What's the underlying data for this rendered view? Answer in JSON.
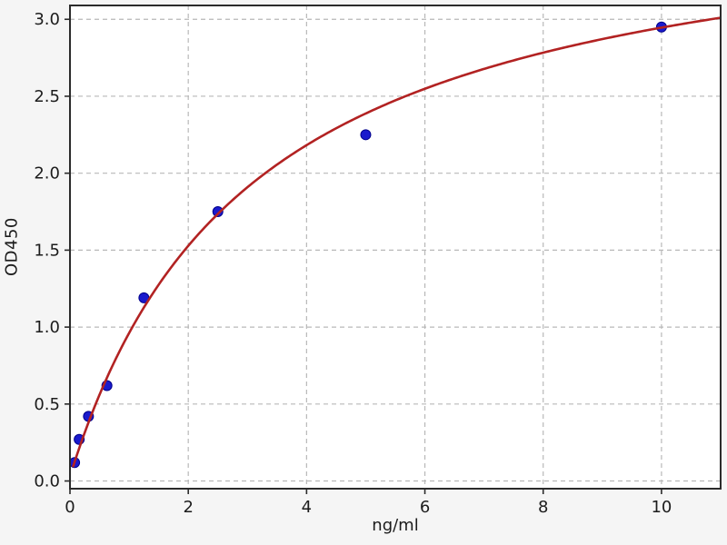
{
  "figure": {
    "background_color": "#f5f5f5",
    "plot_background_color": "#ffffff",
    "spine_color": "#2b2b2b",
    "grid_color": "#b8b8b8",
    "text_color": "#1c1c1c"
  },
  "chart_data": {
    "type": "scatter",
    "title": "",
    "xlabel": "ng/ml",
    "ylabel": "OD450",
    "xlim": [
      0,
      11
    ],
    "ylim": [
      -0.05,
      3.09
    ],
    "x_ticks": [
      0,
      2,
      4,
      6,
      8,
      10
    ],
    "y_ticks": [
      0.0,
      0.5,
      1.0,
      1.5,
      2.0,
      2.5,
      3.0
    ],
    "grid": "dashed",
    "legend_position": "none",
    "series": [
      {
        "name": "standard-points",
        "type": "scatter",
        "marker": "circle",
        "marker_color": "#1a1acd",
        "marker_edge_color": "#00008b",
        "x": [
          0.078,
          0.156,
          0.3125,
          0.625,
          1.25,
          2.5,
          5,
          10
        ],
        "y": [
          0.12,
          0.27,
          0.42,
          0.62,
          1.19,
          1.75,
          2.25,
          2.95
        ]
      },
      {
        "name": "fit-curve",
        "type": "line",
        "color": "#b22222",
        "fit_model": "4PL",
        "fit_params": {
          "a": 0.03,
          "b": 1.0,
          "c": 3.1,
          "d": 3.85
        },
        "x_start": 0.05,
        "x_end": 11
      }
    ]
  }
}
